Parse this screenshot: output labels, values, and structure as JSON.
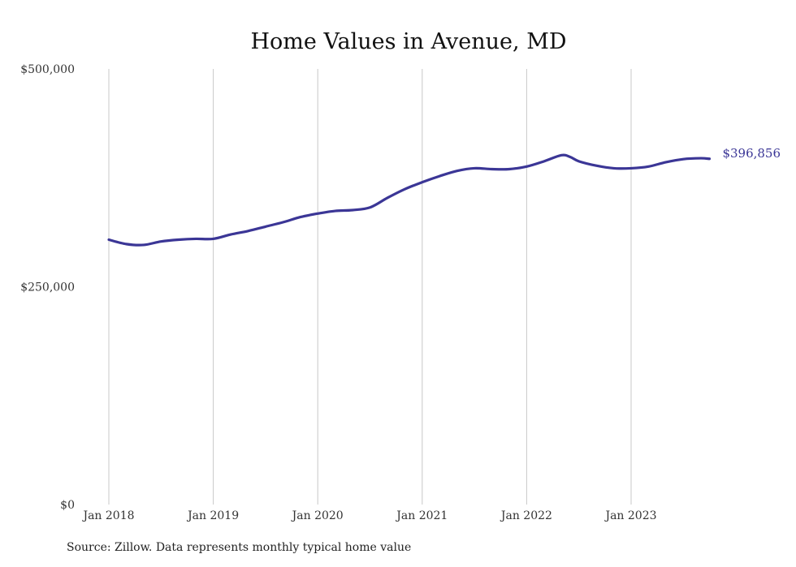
{
  "chart_data": {
    "type": "line",
    "title": "Home Values in Avenue, MD",
    "xlabel": "",
    "ylabel": "",
    "ylim": [
      0,
      500000
    ],
    "y_ticks": [
      {
        "value": 0,
        "label": "$0"
      },
      {
        "value": 250000,
        "label": "$250,000"
      },
      {
        "value": 500000,
        "label": "$500,000"
      }
    ],
    "x_range": [
      "2018-01",
      "2023-10"
    ],
    "x_ticks": [
      {
        "date": "2018-01",
        "label": "Jan 2018"
      },
      {
        "date": "2019-01",
        "label": "Jan 2019"
      },
      {
        "date": "2020-01",
        "label": "Jan 2020"
      },
      {
        "date": "2021-01",
        "label": "Jan 2021"
      },
      {
        "date": "2022-01",
        "label": "Jan 2022"
      },
      {
        "date": "2023-01",
        "label": "Jan 2023"
      }
    ],
    "grid": {
      "vertical": true,
      "horizontal": false
    },
    "legend": "none",
    "line_color": "#3b3696",
    "series": [
      {
        "x": [
          "2018-01",
          "2018-03",
          "2018-05",
          "2018-07",
          "2018-09",
          "2018-11",
          "2019-01",
          "2019-03",
          "2019-05",
          "2019-07",
          "2019-09",
          "2019-11",
          "2020-01",
          "2020-03",
          "2020-05",
          "2020-07",
          "2020-09",
          "2020-11",
          "2021-01",
          "2021-03",
          "2021-05",
          "2021-07",
          "2021-09",
          "2021-11",
          "2022-01",
          "2022-03",
          "2022-05",
          "2022-06",
          "2022-07",
          "2022-09",
          "2022-11",
          "2023-01",
          "2023-03",
          "2023-05",
          "2023-07",
          "2023-09",
          "2023-10"
        ],
        "values": [
          304000,
          299000,
          298000,
          302000,
          304000,
          305000,
          305000,
          310000,
          314000,
          319000,
          324000,
          330000,
          334000,
          337000,
          338000,
          341000,
          352000,
          362000,
          370000,
          377000,
          383000,
          386000,
          385000,
          385000,
          388000,
          394000,
          401000,
          399000,
          394000,
          389000,
          386000,
          386000,
          388000,
          393000,
          396500,
          397500,
          396856
        ]
      }
    ],
    "end_label": "$396,856"
  },
  "source_text": "Source: Zillow. Data represents monthly typical home value"
}
